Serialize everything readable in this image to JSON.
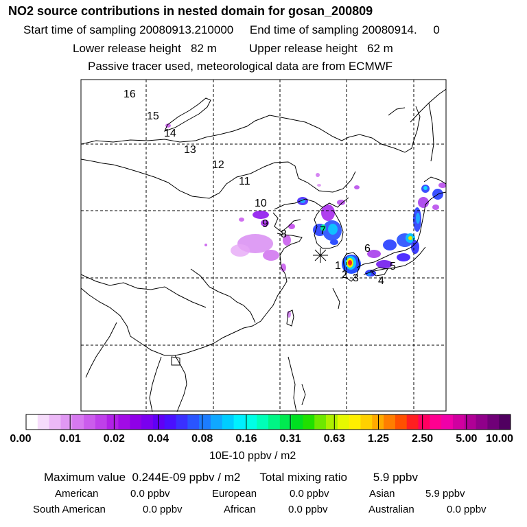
{
  "header": {
    "title": "NO2 source contributions in nested domain for gosan_200809",
    "start_label": "Start time of sampling",
    "start_value": "20080913.210000",
    "end_label": "End time of sampling",
    "end_value": "20080914.",
    "end_suffix": "0",
    "lower_label": "Lower release height",
    "lower_value": "82 m",
    "upper_label": "Upper release height",
    "upper_value": "62 m",
    "note": "Passive tracer used, meteorological data are from ECMWF"
  },
  "map": {
    "trajectory_labels": [
      "1",
      "2",
      "3",
      "4",
      "5",
      "6",
      "7",
      "8",
      "9",
      "10",
      "11",
      "12",
      "13",
      "14",
      "15",
      "16"
    ],
    "receptor": "gosan",
    "grid": "dashed",
    "colors": {
      "coast": "#000000",
      "grid": "#000000"
    }
  },
  "legend": {
    "ticks": [
      "0.00",
      "0.01",
      "0.02",
      "0.04",
      "0.08",
      "0.16",
      "0.31",
      "0.63",
      "1.25",
      "2.50",
      "5.00",
      "10.00"
    ],
    "unit": "10E-10 ppbv / m2",
    "colors": [
      "#ffffff",
      "#f6dcfb",
      "#ecb9f7",
      "#e098f3",
      "#d779f0",
      "#cb5cec",
      "#bf40ea",
      "#b121e7",
      "#a20be6",
      "#8f00e8",
      "#7a00ef",
      "#6000f6",
      "#4a10ff",
      "#3a30ff",
      "#2a55ff",
      "#1c7dff",
      "#10a8ff",
      "#00cdff",
      "#00f0ff",
      "#00ffe6",
      "#00ffb8",
      "#00f585",
      "#00ea50",
      "#00df20",
      "#20e000",
      "#6ee800",
      "#aef000",
      "#e6f800",
      "#ffef00",
      "#ffd000",
      "#ffaa00",
      "#ff7e00",
      "#ff5000",
      "#ff1f20",
      "#ff0060",
      "#ff0090",
      "#f000a8",
      "#d000a0",
      "#b00096",
      "#90008a",
      "#700078",
      "#500060"
    ]
  },
  "summary": {
    "max_label": "Maximum value",
    "max_value": "0.244E-09 ppbv / m2",
    "total_label": "Total mixing ratio",
    "total_value": "5.9 ppbv",
    "regions": [
      {
        "name": "American",
        "value": "0.0 ppbv"
      },
      {
        "name": "European",
        "value": "0.0 ppbv"
      },
      {
        "name": "Asian",
        "value": "5.9 ppbv"
      },
      {
        "name": "South American",
        "value": "0.0 ppbv"
      },
      {
        "name": "African",
        "value": "0.0 ppbv"
      },
      {
        "name": "Australian",
        "value": "0.0 ppbv"
      }
    ]
  }
}
